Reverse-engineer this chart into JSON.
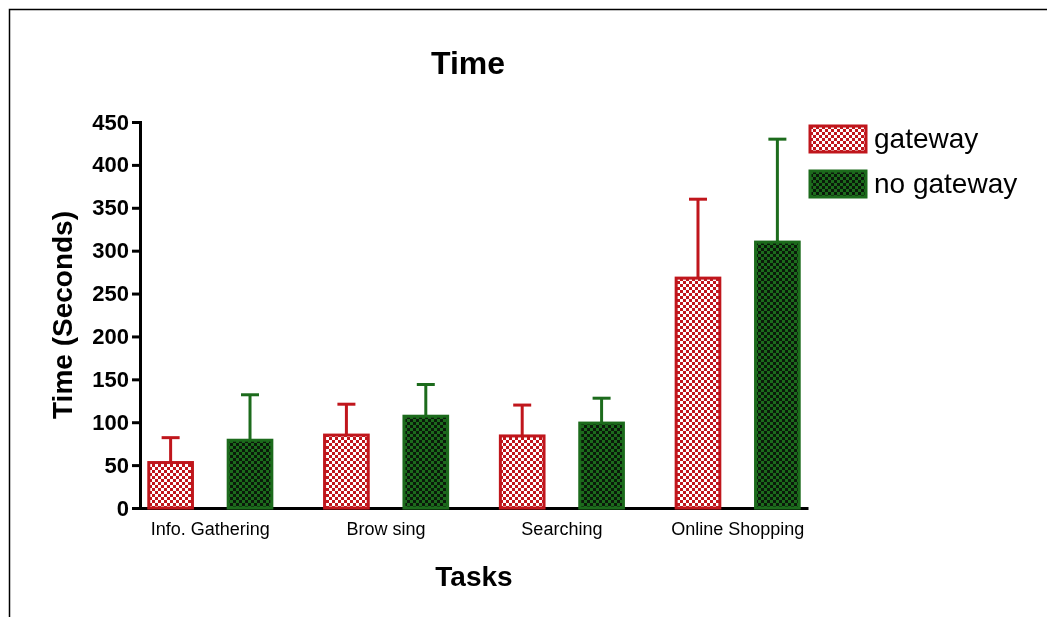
{
  "chart_data": {
    "type": "bar",
    "title": "Time",
    "xlabel": "Tasks",
    "ylabel": "Time (Seconds)",
    "categories": [
      "Info. Gathering",
      "Brow sing",
      "Searching",
      "Online Shopping"
    ],
    "series": [
      {
        "name": "gateway",
        "color": "#c0161c",
        "values": [
          53,
          85,
          84,
          268
        ],
        "errors": [
          [
            53,
            82
          ],
          [
            85,
            121
          ],
          [
            84,
            120
          ],
          [
            268,
            360
          ]
        ]
      },
      {
        "name": "no gateway",
        "color": "#1c6b1c",
        "values": [
          79,
          107,
          99,
          310
        ],
        "errors": [
          [
            79,
            132
          ],
          [
            107,
            144
          ],
          [
            99,
            128
          ],
          [
            310,
            430
          ]
        ]
      }
    ],
    "ylim": [
      0,
      450
    ],
    "yticks": [
      0,
      50,
      100,
      150,
      200,
      250,
      300,
      350,
      400,
      450
    ],
    "grid": false,
    "legend": "top right"
  }
}
